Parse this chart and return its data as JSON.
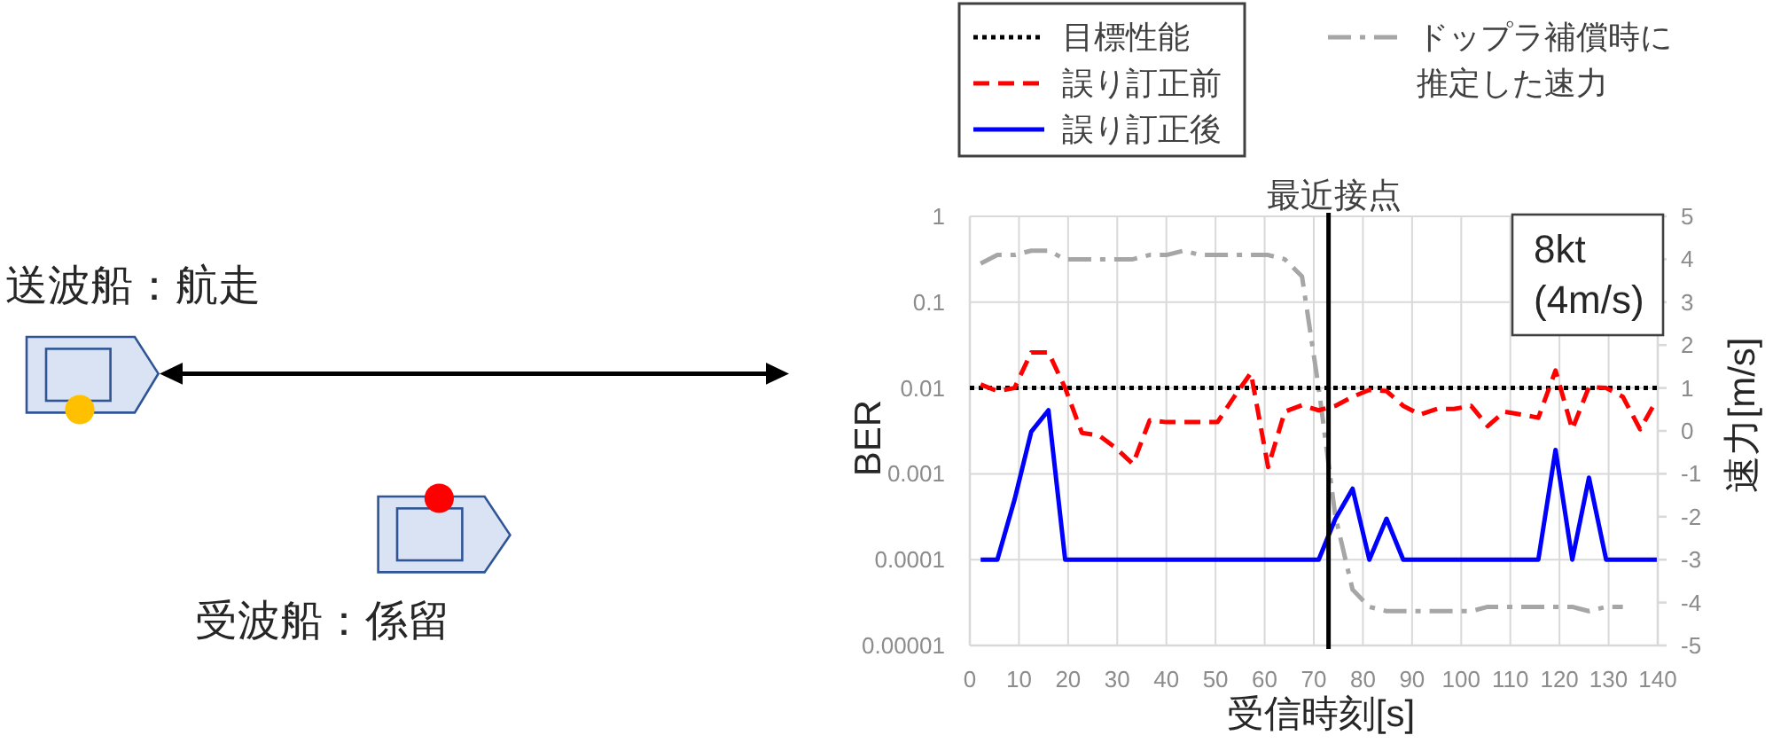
{
  "chart_data": {
    "type": "line",
    "xlabel": "受信時刻[s]",
    "ylabel": "BER",
    "y2label": "速力[m/s]",
    "x": [
      2.2,
      5.6,
      9.1,
      12.5,
      16.0,
      19.4,
      22.8,
      26.3,
      29.7,
      33.2,
      36.6,
      40.0,
      43.5,
      46.9,
      50.4,
      53.8,
      57.2,
      60.7,
      64.1,
      67.6,
      71.0,
      74.4,
      77.9,
      81.3,
      84.8,
      88.2,
      91.6,
      95.1,
      98.5,
      102.0,
      105.4,
      108.8,
      112.3,
      115.7,
      119.2,
      122.6,
      126.0,
      129.5,
      132.9,
      136.4,
      139.8
    ],
    "series": [
      {
        "name": "目標性能",
        "color": "#000000",
        "line_style": "dotted",
        "x": [
          0,
          140
        ],
        "values": [
          0.01,
          0.01
        ]
      },
      {
        "name": "誤り訂正前",
        "color": "#ff0000",
        "line_style": "dashed",
        "values": [
          0.011,
          0.0092,
          0.01,
          0.026,
          0.026,
          0.01,
          0.003,
          0.0028,
          0.002,
          0.0013,
          0.0042,
          0.004,
          0.004,
          0.004,
          0.004,
          0.0079,
          0.015,
          0.0012,
          0.0053,
          0.0063,
          0.0055,
          0.0062,
          0.0079,
          0.0095,
          0.0092,
          0.0062,
          0.0049,
          0.0057,
          0.0057,
          0.0062,
          0.0036,
          0.0053,
          0.0049,
          0.0045,
          0.016,
          0.0033,
          0.0103,
          0.01,
          0.0079,
          0.0033,
          0.0073
        ]
      },
      {
        "name": "誤り訂正後",
        "color": "#0000ff",
        "line_style": "solid",
        "values": [
          0.0001,
          0.0001,
          0.0005,
          0.0031,
          0.0055,
          0.0001,
          0.0001,
          0.0001,
          0.0001,
          0.0001,
          0.0001,
          0.0001,
          0.0001,
          0.0001,
          0.0001,
          0.0001,
          0.0001,
          0.0001,
          0.0001,
          0.0001,
          0.0001,
          0.0003,
          0.00067,
          0.0001,
          0.0003,
          0.0001,
          0.0001,
          0.0001,
          0.0001,
          0.0001,
          0.0001,
          0.0001,
          0.0001,
          0.0001,
          0.0019,
          0.0001,
          0.0009,
          0.0001,
          0.0001,
          0.0001,
          0.0001
        ]
      },
      {
        "name": "ドップラ補償時に推定した速力",
        "color": "#a6a6a6",
        "line_style": "dashdot",
        "axis": "y2",
        "values": [
          3.9,
          4.1,
          4.1,
          4.2,
          4.2,
          4.0,
          4.0,
          4.0,
          4.0,
          4.0,
          4.1,
          4.1,
          4.2,
          4.1,
          4.1,
          4.1,
          4.1,
          4.1,
          4.0,
          3.6,
          1.0,
          -2.0,
          -3.7,
          -4.1,
          -4.2,
          -4.2,
          -4.2,
          -4.2,
          -4.2,
          -4.2,
          -4.1,
          -4.1,
          -4.1,
          -4.1,
          -4.1,
          -4.1,
          -4.2,
          -4.1,
          -4.1,
          null,
          null
        ]
      }
    ],
    "xlim": [
      0,
      140
    ],
    "xticks": [
      0,
      10,
      20,
      30,
      40,
      50,
      60,
      70,
      80,
      90,
      100,
      110,
      120,
      130,
      140
    ],
    "log": "y",
    "ylim": [
      1e-05,
      1
    ],
    "yticks": [
      {
        "value": 1e-05,
        "label": "0.00001"
      },
      0.0001,
      0.001,
      0.01,
      0.1,
      1
    ],
    "y2lim": [
      -5,
      5
    ],
    "y2ticks": [
      -5,
      -4,
      -3,
      -2,
      -1,
      0,
      1,
      2,
      3,
      4,
      5
    ],
    "ref_lines": [
      {
        "axis": "x",
        "value": 73,
        "label": "最近接点",
        "color": "#000000"
      }
    ],
    "annotations": [
      "8kt\n(4m/s)",
      "送波船：航走",
      "受波船：係留"
    ],
    "grid": true,
    "legend": "top"
  }
}
